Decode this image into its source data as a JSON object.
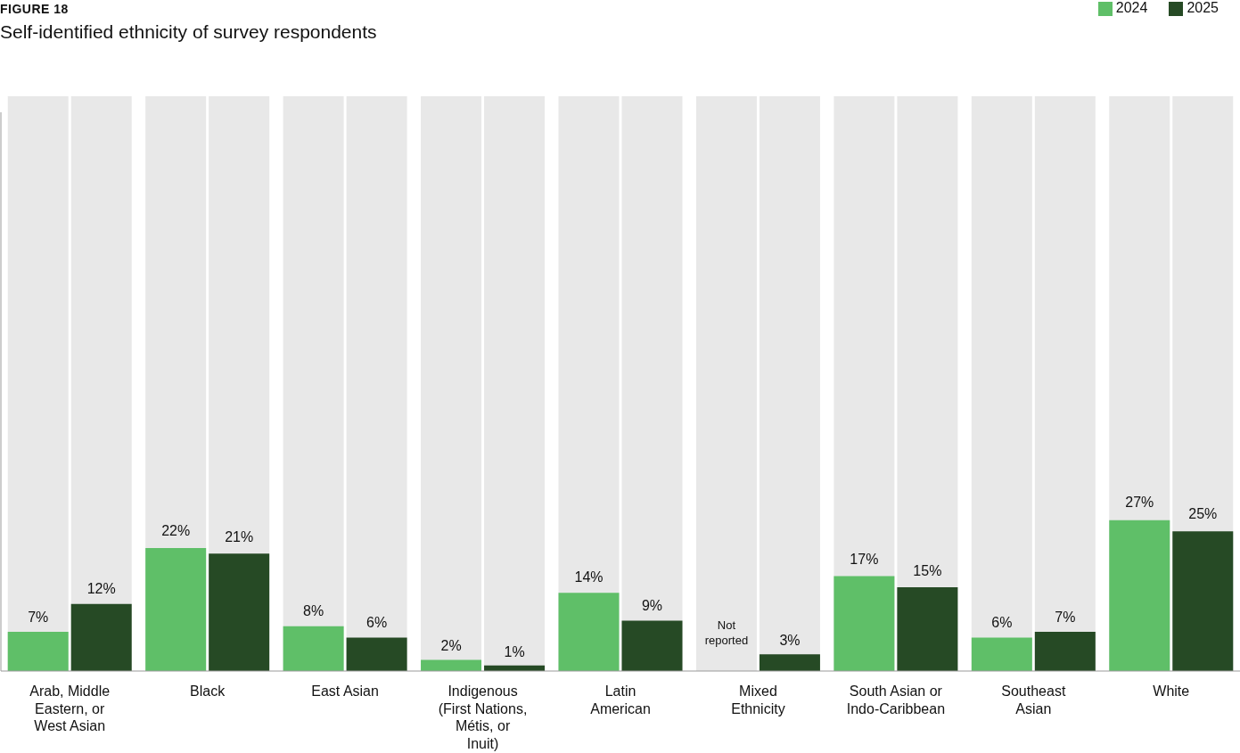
{
  "chart_data": {
    "type": "bar",
    "title": "Self-identified ethnicity of survey respondents",
    "annotations": [
      "FIGURE 18"
    ],
    "categories": [
      "Arab, Middle Eastern, or West Asian",
      "Black",
      "East Asian",
      "Indigenous (First Nations, Métis, or Inuit)",
      "Latin American",
      "Mixed Ethnicity",
      "South Asian or Indo-Caribbean",
      "Southeast Asian",
      "White"
    ],
    "series": [
      {
        "name": "2024",
        "color": "#5fbf68",
        "values": [
          7,
          22,
          8,
          2,
          14,
          null,
          17,
          6,
          27
        ],
        "value_labels": [
          "7%",
          "22%",
          "8%",
          "2%",
          "14%",
          "Not reported",
          "17%",
          "6%",
          "27%"
        ]
      },
      {
        "name": "2025",
        "color": "#264a25",
        "values": [
          12,
          21,
          6,
          1,
          9,
          3,
          15,
          7,
          25
        ],
        "value_labels": [
          "12%",
          "21%",
          "6%",
          "1%",
          "9%",
          "3%",
          "15%",
          "7%",
          "25%"
        ]
      }
    ],
    "ylim": [
      0,
      100
    ],
    "tick_labels": "x",
    "grid": false,
    "legend": "top right"
  }
}
